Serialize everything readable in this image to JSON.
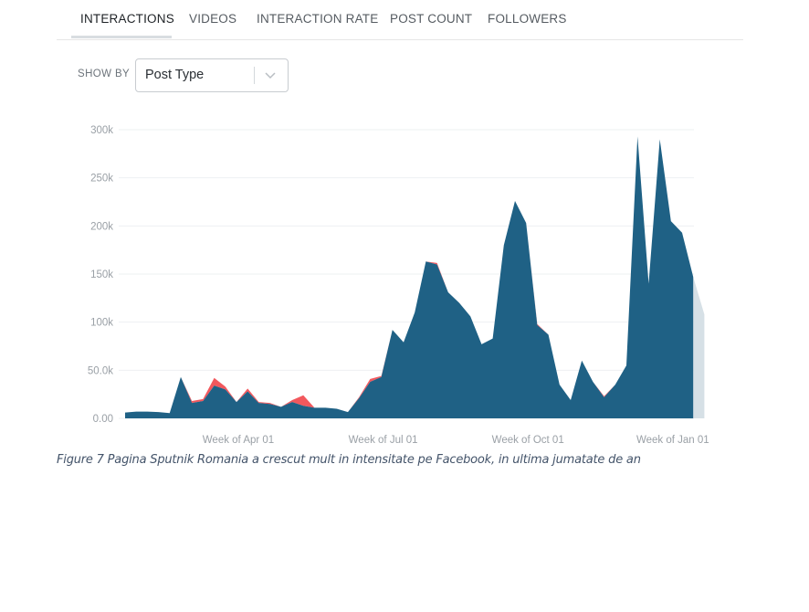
{
  "tabs": [
    {
      "label": "INTERACTIONS",
      "active": true
    },
    {
      "label": "VIDEOS",
      "active": false
    },
    {
      "label": "INTERACTION RATE",
      "active": false
    },
    {
      "label": "POST COUNT",
      "active": false
    },
    {
      "label": "FOLLOWERS",
      "active": false
    }
  ],
  "show_by": {
    "label": "SHOW BY",
    "value": "Post Type"
  },
  "caption": "Figure 7 Pagina Sputnik Romania a crescut mult in intensitate pe Facebook, in ultima jumatate de an",
  "chart_data": {
    "type": "area",
    "title": "",
    "xlabel": "",
    "ylabel": "",
    "ylim": [
      0,
      300000
    ],
    "y_ticks": [
      "0.00",
      "50.0k",
      "100k",
      "150k",
      "200k",
      "250k",
      "300k"
    ],
    "x_ticks": [
      {
        "label": "Week of Apr 01",
        "index": 10
      },
      {
        "label": "Week of Jul 01",
        "index": 23
      },
      {
        "label": "Week of Oct 01",
        "index": 36
      },
      {
        "label": "Week of Jan 01",
        "index": 49
      }
    ],
    "colors": {
      "main": "#1f6185",
      "secondary": "#f2585d",
      "projection": "#d6e0e6"
    },
    "series": [
      {
        "color": "#1f6185",
        "values": [
          6000,
          7000,
          7000,
          6500,
          5500,
          43000,
          16000,
          18000,
          34000,
          30000,
          17000,
          28000,
          16000,
          15000,
          12000,
          17000,
          13000,
          11000,
          11000,
          10000,
          6500,
          21000,
          38000,
          43000,
          92000,
          79000,
          110000,
          163000,
          160000,
          131000,
          120000,
          106000,
          77000,
          83000,
          180000,
          226000,
          203000,
          97000,
          87000,
          35000,
          19000,
          60000,
          38000,
          22000,
          35000,
          55000,
          293000,
          140000,
          290000,
          205000,
          193000,
          147000
        ]
      },
      {
        "color": "#f2585d",
        "values": [
          0,
          0,
          0,
          0,
          0,
          0,
          2000,
          2000,
          8000,
          3000,
          0,
          3000,
          1000,
          1000,
          0,
          2000,
          11000,
          0,
          0,
          0,
          0,
          1000,
          3000,
          1000,
          0,
          0,
          0,
          0,
          1500,
          0,
          0,
          0,
          0,
          0,
          0,
          0,
          0,
          1000,
          0,
          0,
          0,
          0,
          0,
          1000,
          0,
          0,
          0,
          0,
          0,
          0,
          0,
          0
        ]
      }
    ],
    "projection": {
      "from_value": 147000,
      "to_value": 108000
    }
  }
}
